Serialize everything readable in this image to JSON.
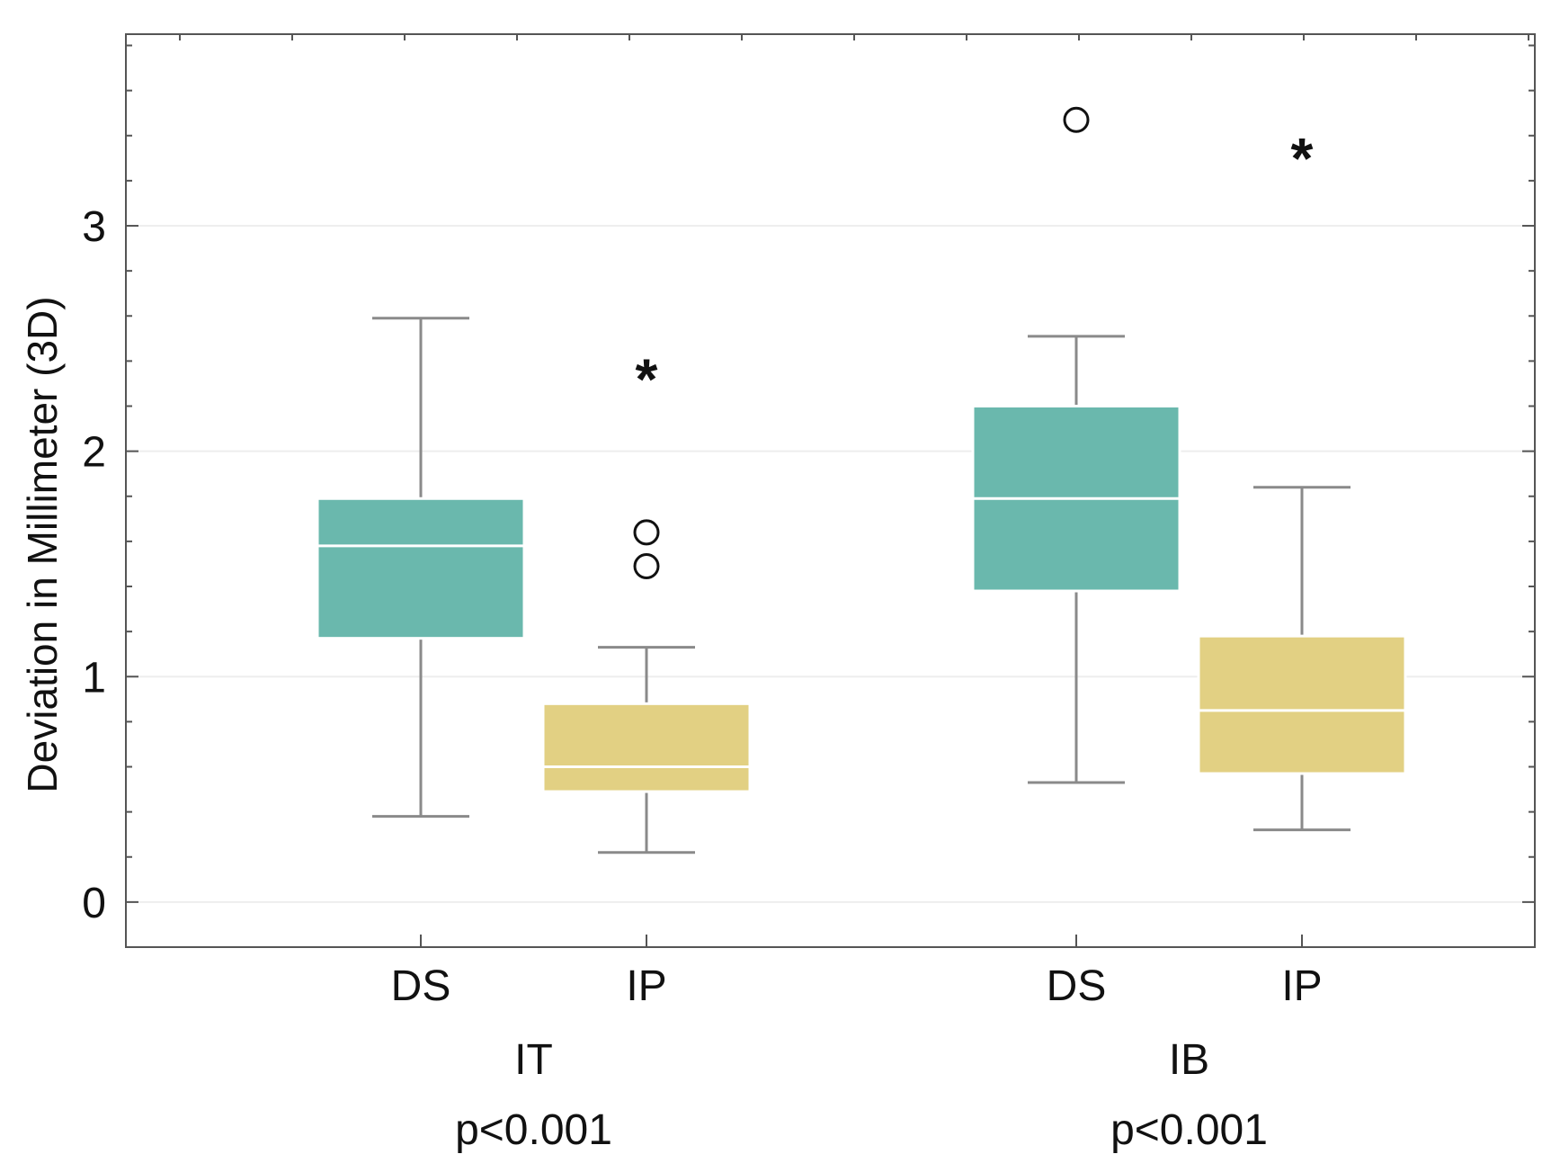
{
  "chart_data": {
    "type": "box",
    "ylabel": "Deviation in Millimeter (3D)",
    "ylim": [
      -0.2,
      3.85
    ],
    "yticks": [
      0,
      1,
      2,
      3
    ],
    "grid": true,
    "colors": {
      "DS": "#6ab8ad",
      "IP": "#e2d083",
      "axis": "#555555",
      "whisker": "#8a8a8a",
      "grid": "#eeeeee",
      "median": "#ffffff"
    },
    "groups": [
      {
        "name": "IT",
        "p_value": "p<0.001",
        "boxes": [
          {
            "category": "DS",
            "whisker_low": 0.38,
            "q1": 1.17,
            "median": 1.58,
            "q3": 1.79,
            "whisker_high": 2.59,
            "outliers": [],
            "extremes": []
          },
          {
            "category": "IP",
            "whisker_low": 0.22,
            "q1": 0.49,
            "median": 0.6,
            "q3": 0.88,
            "whisker_high": 1.13,
            "outliers": [
              1.49,
              1.64
            ],
            "extremes": [
              2.36
            ]
          }
        ]
      },
      {
        "name": "IB",
        "p_value": "p<0.001",
        "boxes": [
          {
            "category": "DS",
            "whisker_low": 0.53,
            "q1": 1.38,
            "median": 1.79,
            "q3": 2.2,
            "whisker_high": 2.51,
            "outliers": [
              3.47
            ],
            "extremes": []
          },
          {
            "category": "IP",
            "whisker_low": 0.32,
            "q1": 0.57,
            "median": 0.85,
            "q3": 1.18,
            "whisker_high": 1.84,
            "outliers": [],
            "extremes": [
              3.34
            ]
          }
        ]
      }
    ]
  }
}
